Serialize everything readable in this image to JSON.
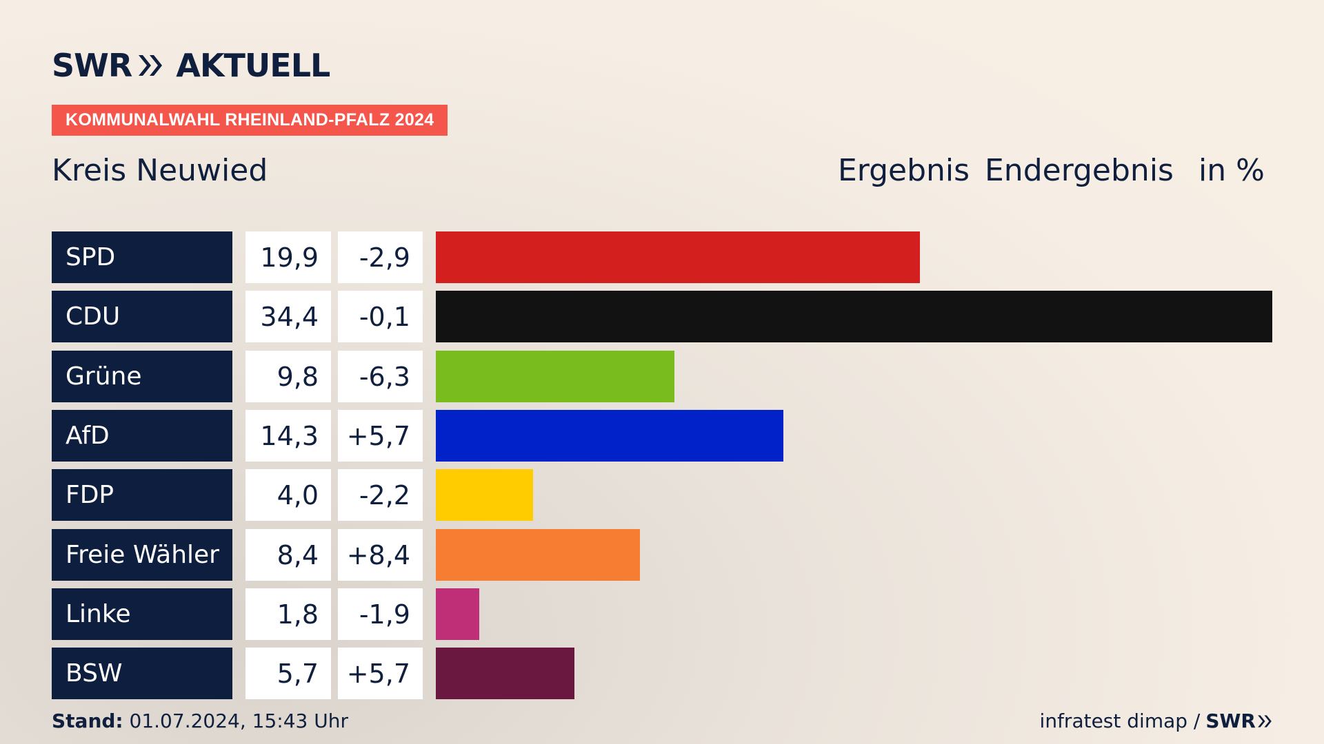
{
  "header": {
    "logo_text": "SWR",
    "logo_suffix": "AKTUELL",
    "badge": "KOMMUNALWAHL RHEINLAND-PFALZ 2024",
    "region": "Kreis Neuwied",
    "col_result": "Ergebnis",
    "col_status": "Endergebnis",
    "col_unit": "in %"
  },
  "chart_data": {
    "type": "bar",
    "orientation": "horizontal",
    "categories": [
      "SPD",
      "CDU",
      "Grüne",
      "AfD",
      "FDP",
      "Freie Wähler",
      "Linke",
      "BSW"
    ],
    "values": [
      19.9,
      34.4,
      9.8,
      14.3,
      4.0,
      8.4,
      1.8,
      5.7
    ],
    "value_labels": [
      "19,9",
      "34,4",
      "9,8",
      "14,3",
      "4,0",
      "8,4",
      "1,8",
      "5,7"
    ],
    "changes": [
      "-2,9",
      "-0,1",
      "-6,3",
      "+5,7",
      "-2,2",
      "+8,4",
      "-1,9",
      "+5,7"
    ],
    "colors": [
      "#d41f1f",
      "#121212",
      "#78bc1e",
      "#0022c8",
      "#ffcc00",
      "#f77d32",
      "#be2f78",
      "#6b1840"
    ],
    "xlim": [
      0,
      34.4
    ]
  },
  "footer": {
    "stand_label": "Stand:",
    "stand_value": "01.07.2024, 15:43 Uhr",
    "source": "infratest dimap /",
    "source_logo": "SWR"
  }
}
